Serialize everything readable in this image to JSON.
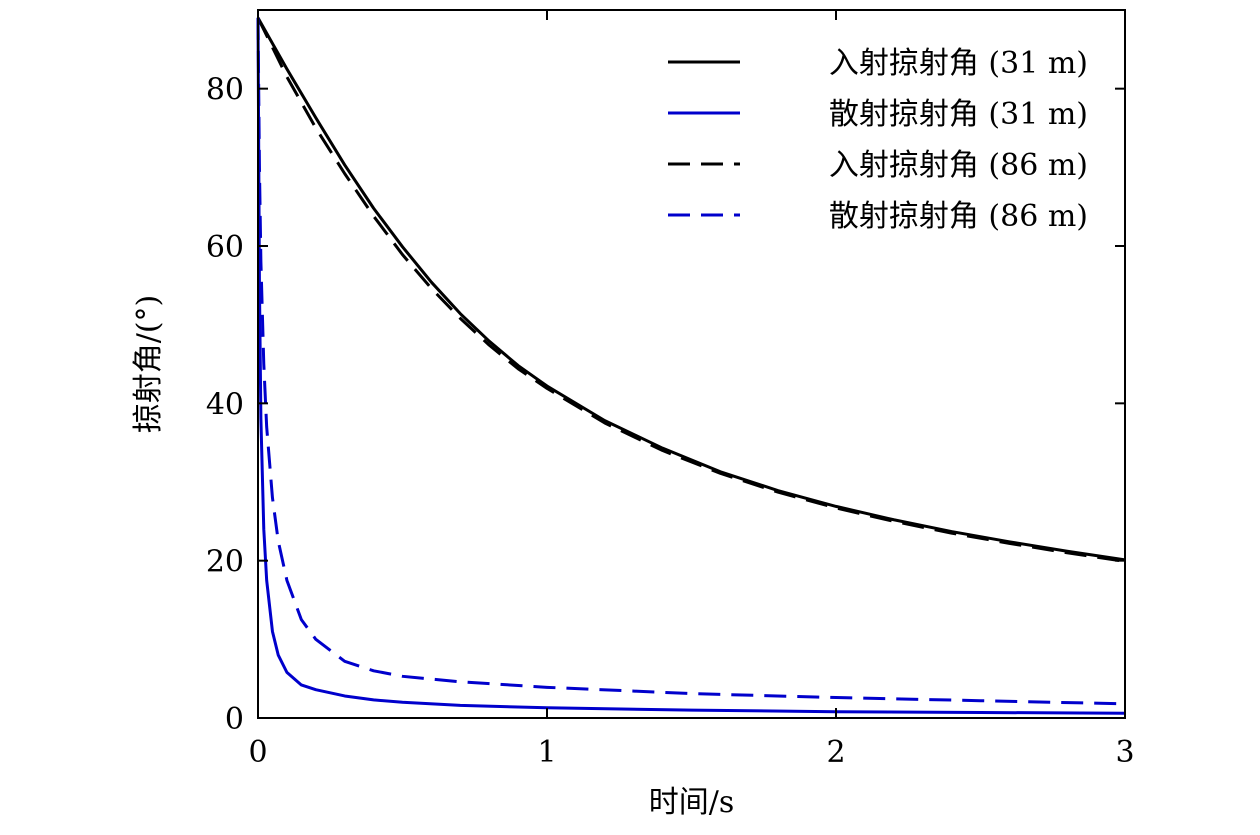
{
  "chart_data": {
    "type": "line",
    "xlabel": "时间/s",
    "ylabel": "掠射角/(°)",
    "xlim": [
      0,
      3
    ],
    "ylim": [
      0,
      90
    ],
    "x_ticks": [
      "0",
      "1",
      "2",
      "3"
    ],
    "y_ticks": [
      "0",
      "20",
      "40",
      "60",
      "80"
    ],
    "grid": false,
    "legend_position": "top-right",
    "series": [
      {
        "name": "入射掠射角 (31 m)",
        "color": "#000000",
        "dash": "solid",
        "x": [
          0,
          0.1,
          0.2,
          0.3,
          0.4,
          0.5,
          0.6,
          0.7,
          0.8,
          0.9,
          1.0,
          1.2,
          1.4,
          1.6,
          1.8,
          2.0,
          2.2,
          2.4,
          2.6,
          2.8,
          3.0
        ],
        "y": [
          89,
          82.5,
          76.3,
          70.3,
          64.8,
          59.9,
          55.4,
          51.4,
          47.9,
          44.8,
          42.2,
          37.8,
          34.3,
          31.3,
          28.9,
          26.9,
          25.2,
          23.7,
          22.4,
          21.2,
          20.1
        ]
      },
      {
        "name": "散射掠射角 (31 m)",
        "color": "#0000cc",
        "dash": "solid",
        "x": [
          0,
          0.005,
          0.01,
          0.02,
          0.03,
          0.05,
          0.07,
          0.1,
          0.15,
          0.2,
          0.3,
          0.4,
          0.5,
          0.7,
          1.0,
          1.5,
          2.0,
          2.5,
          3.0
        ],
        "y": [
          89,
          55,
          38,
          24,
          17.5,
          11,
          8,
          5.8,
          4.2,
          3.6,
          2.8,
          2.3,
          2.0,
          1.6,
          1.3,
          1.0,
          0.8,
          0.7,
          0.6
        ]
      },
      {
        "name": "入射掠射角 (86 m)",
        "color": "#000000",
        "dash": "dashed",
        "x": [
          0,
          0.1,
          0.2,
          0.3,
          0.4,
          0.5,
          0.6,
          0.7,
          0.8,
          0.9,
          1.0,
          1.2,
          1.4,
          1.6,
          1.8,
          2.0,
          2.2,
          2.4,
          2.6,
          2.8,
          3.0
        ],
        "y": [
          89,
          81.5,
          75,
          69.2,
          63.8,
          58.9,
          54.6,
          50.8,
          47.4,
          44.4,
          41.9,
          37.5,
          34.0,
          31.1,
          28.7,
          26.7,
          25.0,
          23.5,
          22.2,
          21.0,
          19.9
        ]
      },
      {
        "name": "散射掠射角 (86 m)",
        "color": "#0000cc",
        "dash": "dashed",
        "x": [
          0,
          0.005,
          0.01,
          0.02,
          0.03,
          0.05,
          0.07,
          0.1,
          0.15,
          0.2,
          0.3,
          0.4,
          0.5,
          0.7,
          1.0,
          1.5,
          2.0,
          2.5,
          3.0
        ],
        "y": [
          89,
          70,
          58,
          45,
          37,
          28,
          22.5,
          17.5,
          12.5,
          10,
          7.2,
          6.0,
          5.3,
          4.6,
          3.9,
          3.1,
          2.6,
          2.2,
          1.8
        ]
      }
    ]
  }
}
